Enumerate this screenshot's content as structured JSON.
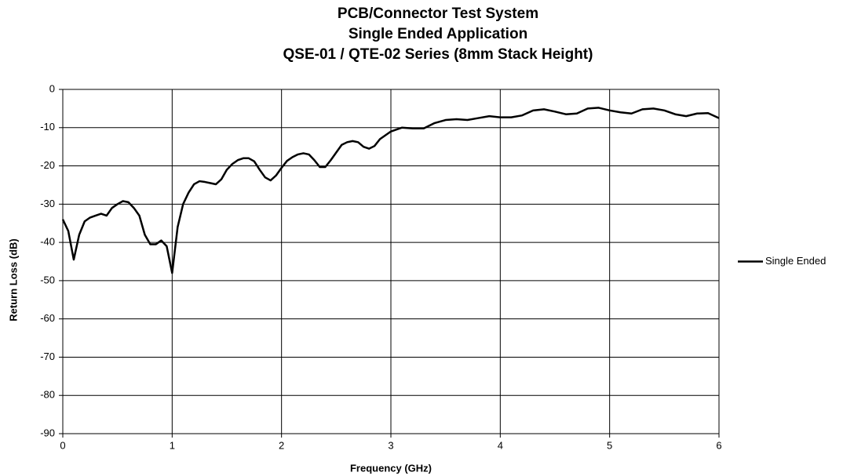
{
  "chart_data": {
    "type": "line",
    "title": [
      "PCB/Connector Test System",
      "Single Ended Application",
      "QSE-01 / QTE-02 Series (8mm Stack Height)"
    ],
    "x_label": "Frequency (GHz)",
    "y_label": "Return Loss (dB)",
    "x": [
      0,
      0.05,
      0.1,
      0.15,
      0.2,
      0.25,
      0.3,
      0.35,
      0.4,
      0.45,
      0.5,
      0.55,
      0.6,
      0.65,
      0.7,
      0.75,
      0.8,
      0.85,
      0.9,
      0.95,
      1.0,
      1.05,
      1.1,
      1.15,
      1.2,
      1.25,
      1.3,
      1.35,
      1.4,
      1.45,
      1.5,
      1.55,
      1.6,
      1.65,
      1.7,
      1.75,
      1.8,
      1.85,
      1.9,
      1.95,
      2.0,
      2.05,
      2.1,
      2.15,
      2.2,
      2.25,
      2.3,
      2.35,
      2.4,
      2.45,
      2.5,
      2.55,
      2.6,
      2.65,
      2.7,
      2.75,
      2.8,
      2.85,
      2.9,
      3.0,
      3.1,
      3.2,
      3.3,
      3.4,
      3.5,
      3.6,
      3.7,
      3.8,
      3.9,
      4.0,
      4.1,
      4.2,
      4.3,
      4.4,
      4.5,
      4.6,
      4.7,
      4.8,
      4.9,
      5.0,
      5.1,
      5.2,
      5.3,
      5.4,
      5.5,
      5.6,
      5.7,
      5.8,
      5.9,
      6.0
    ],
    "series": [
      {
        "name": "Single Ended",
        "color": "#000000",
        "values": [
          -34,
          -37,
          -44.5,
          -38,
          -34.5,
          -33.5,
          -33,
          -32.5,
          -33,
          -31,
          -30,
          -29.2,
          -29.5,
          -31,
          -33,
          -38,
          -40.5,
          -40.5,
          -39.5,
          -41,
          -48,
          -36,
          -30,
          -27,
          -24.8,
          -24,
          -24.2,
          -24.5,
          -24.8,
          -23.5,
          -21,
          -19.5,
          -18.5,
          -18,
          -18,
          -18.8,
          -21,
          -23,
          -23.8,
          -22.5,
          -20.5,
          -18.7,
          -17.7,
          -17,
          -16.7,
          -17,
          -18.5,
          -20.3,
          -20.3,
          -18.5,
          -16.5,
          -14.5,
          -13.8,
          -13.5,
          -13.8,
          -15,
          -15.5,
          -14.8,
          -13,
          -11,
          -10,
          -10.2,
          -10.2,
          -8.8,
          -8,
          -7.8,
          -8,
          -7.5,
          -7,
          -7.3,
          -7.3,
          -6.8,
          -5.5,
          -5.2,
          -5.8,
          -6.5,
          -6.3,
          -5,
          -4.8,
          -5.5,
          -6,
          -6.3,
          -5.2,
          -5,
          -5.5,
          -6.5,
          -7,
          -6.3,
          -6.2,
          -7.5
        ]
      }
    ],
    "xlim": [
      0,
      6
    ],
    "xticks": [
      0,
      1,
      2,
      3,
      4,
      5,
      6
    ],
    "ylim": [
      -90,
      0
    ],
    "yticks": [
      -90,
      -80,
      -70,
      -60,
      -50,
      -40,
      -30,
      -20,
      -10,
      0
    ],
    "grid": true,
    "legend": "right"
  }
}
